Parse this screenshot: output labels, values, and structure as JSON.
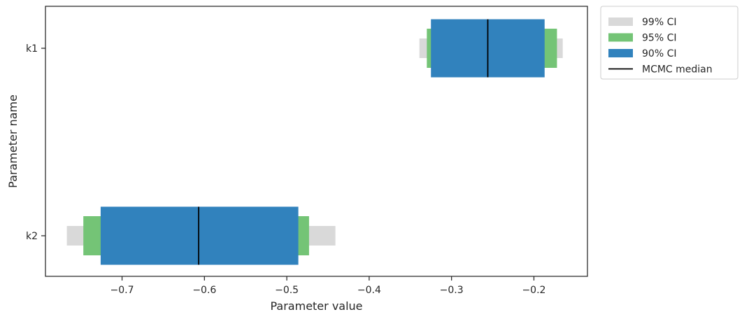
{
  "chart_data": {
    "type": "interval",
    "orientation": "horizontal",
    "xlabel": "Parameter value",
    "ylabel": "Parameter name",
    "xlim": [
      -0.793,
      -0.135
    ],
    "x_ticks": [
      -0.7,
      -0.6,
      -0.5,
      -0.4,
      -0.3,
      -0.2
    ],
    "x_tick_labels": [
      "−0.7",
      "−0.6",
      "−0.5",
      "−0.4",
      "−0.3",
      "−0.2"
    ],
    "categories": [
      "k1",
      "k2"
    ],
    "series": [
      {
        "name": "99% CI",
        "color": "#d9d9d9",
        "intervals": [
          [
            -0.339,
            -0.165
          ],
          [
            -0.767,
            -0.441
          ]
        ]
      },
      {
        "name": "95% CI",
        "color": "#74c476",
        "intervals": [
          [
            -0.33,
            -0.172
          ],
          [
            -0.747,
            -0.473
          ]
        ]
      },
      {
        "name": "90% CI",
        "color": "#3182bd",
        "intervals": [
          [
            -0.325,
            -0.187
          ],
          [
            -0.726,
            -0.486
          ]
        ]
      }
    ],
    "median": {
      "name": "MCMC median",
      "color": "#000000",
      "values": [
        -0.256,
        -0.607
      ]
    },
    "grid": false,
    "legend_position": "outside-top-right"
  }
}
